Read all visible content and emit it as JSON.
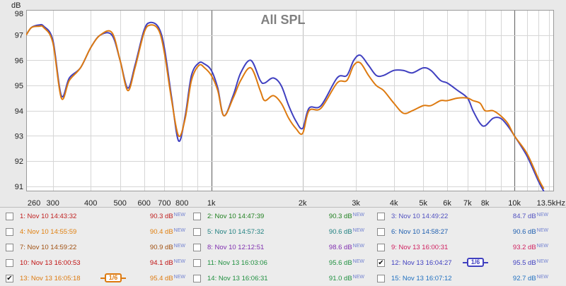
{
  "chart_data": {
    "type": "line",
    "title": "All SPL",
    "y_unit": "dB",
    "x_unit": "Hz",
    "x_scale": "log",
    "xlim": [
      245,
      13500
    ],
    "ylim": [
      90.8,
      98.0
    ],
    "grid": true,
    "x_ticks": [
      {
        "value": 260,
        "label": "260"
      },
      {
        "value": 300,
        "label": "300"
      },
      {
        "value": 400,
        "label": "400"
      },
      {
        "value": 500,
        "label": "500"
      },
      {
        "value": 600,
        "label": "600"
      },
      {
        "value": 700,
        "label": "700"
      },
      {
        "value": 800,
        "label": "800"
      },
      {
        "value": 1000,
        "label": "1k"
      },
      {
        "value": 2000,
        "label": "2k"
      },
      {
        "value": 3000,
        "label": "3k"
      },
      {
        "value": 4000,
        "label": "4k"
      },
      {
        "value": 5000,
        "label": "5k"
      },
      {
        "value": 6000,
        "label": "6k"
      },
      {
        "value": 7000,
        "label": "7k"
      },
      {
        "value": 8000,
        "label": "8k"
      },
      {
        "value": 10000,
        "label": "10k"
      },
      {
        "value": 13500,
        "label": "13.5kHz"
      }
    ],
    "y_ticks": [
      {
        "value": 98,
        "label": "98"
      },
      {
        "value": 97,
        "label": "97"
      },
      {
        "value": 96,
        "label": "96"
      },
      {
        "value": 95,
        "label": "95"
      },
      {
        "value": 94,
        "label": "94"
      },
      {
        "value": 93,
        "label": "93"
      },
      {
        "value": 92,
        "label": "92"
      },
      {
        "value": 91,
        "label": "91"
      }
    ],
    "series": [
      {
        "color": "#4040c0",
        "x": [
          245,
          255,
          270,
          280,
          300,
          320,
          340,
          370,
          400,
          430,
          470,
          500,
          530,
          560,
          600,
          630,
          670,
          700,
          740,
          780,
          820,
          860,
          910,
          950,
          1000,
          1050,
          1100,
          1180,
          1250,
          1350,
          1450,
          1500,
          1600,
          1700,
          1800,
          1900,
          2000,
          2100,
          2300,
          2600,
          2800,
          2950,
          3100,
          3300,
          3500,
          3700,
          4000,
          4300,
          4600,
          5000,
          5300,
          5700,
          6000,
          6500,
          7000,
          7300,
          7700,
          8000,
          8500,
          9000,
          9500,
          10000,
          11000,
          12000,
          12500
        ],
        "y": [
          97.0,
          97.3,
          97.4,
          97.35,
          96.8,
          94.6,
          95.3,
          95.7,
          96.5,
          97.0,
          97.0,
          96.0,
          94.9,
          95.8,
          97.2,
          97.5,
          97.3,
          96.5,
          94.5,
          92.8,
          93.8,
          95.4,
          95.9,
          95.85,
          95.6,
          94.9,
          93.8,
          94.6,
          95.5,
          96.0,
          95.2,
          95.1,
          95.3,
          95.0,
          94.2,
          93.6,
          93.3,
          94.1,
          94.2,
          95.3,
          95.4,
          96.0,
          96.2,
          95.8,
          95.4,
          95.4,
          95.6,
          95.6,
          95.5,
          95.7,
          95.6,
          95.2,
          95.1,
          94.8,
          94.5,
          94.0,
          93.5,
          93.4,
          93.7,
          93.7,
          93.4,
          93.0,
          92.2,
          91.2,
          90.8
        ]
      },
      {
        "color": "#dd7a10",
        "x": [
          245,
          255,
          270,
          280,
          300,
          320,
          340,
          370,
          400,
          430,
          470,
          500,
          530,
          560,
          600,
          630,
          670,
          700,
          740,
          780,
          820,
          860,
          910,
          950,
          1000,
          1050,
          1100,
          1180,
          1250,
          1350,
          1450,
          1500,
          1600,
          1700,
          1800,
          1900,
          2000,
          2100,
          2300,
          2600,
          2800,
          2950,
          3100,
          3300,
          3500,
          3700,
          4000,
          4300,
          4600,
          5000,
          5300,
          5700,
          6000,
          6500,
          7000,
          7300,
          7700,
          8000,
          8500,
          9000,
          9500,
          10000,
          11000,
          12000,
          12500
        ],
        "y": [
          97.0,
          97.3,
          97.35,
          97.3,
          96.7,
          94.5,
          95.2,
          95.7,
          96.5,
          97.0,
          97.1,
          96.0,
          94.8,
          95.7,
          97.1,
          97.4,
          97.2,
          96.3,
          94.4,
          93.0,
          93.7,
          95.2,
          95.8,
          95.7,
          95.4,
          94.8,
          93.8,
          94.5,
          95.2,
          95.7,
          94.8,
          94.4,
          94.6,
          94.3,
          93.7,
          93.3,
          93.1,
          94.0,
          94.1,
          95.1,
          95.2,
          95.8,
          95.9,
          95.4,
          95.0,
          94.8,
          94.3,
          93.9,
          94.0,
          94.2,
          94.2,
          94.4,
          94.4,
          94.5,
          94.5,
          94.4,
          94.3,
          94.0,
          94.0,
          93.8,
          93.5,
          93.0,
          92.3,
          91.3,
          90.9
        ]
      }
    ]
  },
  "legend": {
    "new_tag": "NEW",
    "smooth_label": "1/6",
    "entries": [
      {
        "checked": false,
        "label": "1: Nov 10 14:43:32",
        "value": "90.3 dB",
        "color": "#c02020"
      },
      {
        "checked": false,
        "label": "2: Nov 10 14:47:39",
        "value": "90.3 dB",
        "color": "#208020"
      },
      {
        "checked": false,
        "label": "3: Nov 10 14:49:22",
        "value": "84.7 dB",
        "color": "#5050c0"
      },
      {
        "checked": false,
        "label": "4: Nov 10 14:55:59",
        "value": "90.4 dB",
        "color": "#e08010"
      },
      {
        "checked": false,
        "label": "5: Nov 10 14:57:32",
        "value": "90.6 dB",
        "color": "#208080"
      },
      {
        "checked": false,
        "label": "6: Nov 10 14:58:27",
        "value": "90.6 dB",
        "color": "#2060b0"
      },
      {
        "checked": false,
        "label": "7: Nov 10 14:59:22",
        "value": "90.9 dB",
        "color": "#a05010"
      },
      {
        "checked": false,
        "label": "8: Nov 10 12:12:51",
        "value": "98.6 dB",
        "color": "#8030b0"
      },
      {
        "checked": false,
        "label": "9: Nov 13 16:00:31",
        "value": "93.2 dB",
        "color": "#d02060"
      },
      {
        "checked": false,
        "label": "10: Nov 13 16:00:53",
        "value": "94.1 dB",
        "color": "#c01010"
      },
      {
        "checked": false,
        "label": "11: Nov 13 16:03:06",
        "value": "95.6 dB",
        "color": "#209040"
      },
      {
        "checked": true,
        "label": "12: Nov 13 16:04:27",
        "value": "95.5 dB",
        "color": "#4040c0"
      },
      {
        "checked": true,
        "label": "13: Nov 13 16:05:18",
        "value": "95.4 dB",
        "color": "#dd7a10"
      },
      {
        "checked": false,
        "label": "14: Nov 13 16:06:31",
        "value": "91.0 dB",
        "color": "#209040"
      },
      {
        "checked": false,
        "label": "15: Nov 13 16:07:12",
        "value": "92.7 dB",
        "color": "#2070c0"
      }
    ]
  }
}
